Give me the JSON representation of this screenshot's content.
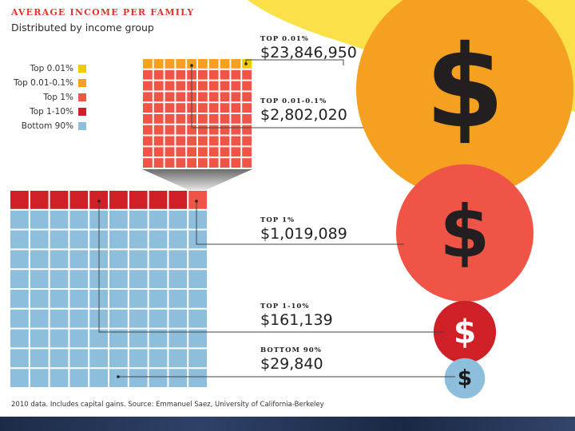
{
  "chart_data": {
    "type": "bar",
    "title": "AVERAGE INCOME PER FAMILY",
    "subtitle": "Distributed by income group",
    "categories": [
      "Top 0.01%",
      "Top 0.01-0.1%",
      "Top 1%",
      "Top 1-10%",
      "Bottom 90%"
    ],
    "values": [
      23846950,
      2802020,
      1019089,
      161139,
      29840
    ],
    "series": [
      {
        "name": "Top 0.01%",
        "label": "TOP 0.01%",
        "value": 23846950,
        "display": "$23,846,950",
        "color": "#f5c800"
      },
      {
        "name": "Top 0.01-0.1%",
        "label": "TOP 0.01-0.1%",
        "value": 2802020,
        "display": "$2,802,020",
        "color": "#f5a020"
      },
      {
        "name": "Top 1%",
        "label": "TOP 1%",
        "value": 1019089,
        "display": "$1,019,089",
        "color": "#ef5446"
      },
      {
        "name": "Top 1-10%",
        "label": "TOP 1-10%",
        "value": 161139,
        "display": "$161,139",
        "color": "#cf2027"
      },
      {
        "name": "Bottom 90%",
        "label": "BOTTOM 90%",
        "value": 29840,
        "display": "$29,840",
        "color": "#8dbfdd"
      }
    ],
    "legend": [
      {
        "label": "Top 0.01%",
        "color": "#f5c800"
      },
      {
        "label": "Top 0.01-0.1%",
        "color": "#f5a020"
      },
      {
        "label": "Top 1%",
        "color": "#ef5446"
      },
      {
        "label": "Top 1-10%",
        "color": "#cf2027"
      },
      {
        "label": "Bottom 90%",
        "color": "#8dbfdd"
      }
    ],
    "small_grid": {
      "rows": 10,
      "cols": 10,
      "top_row": [
        9,
        1
      ]
    },
    "big_grid": {
      "rows": 10,
      "cols": 10,
      "top_row": [
        9,
        1
      ]
    },
    "dollar_symbol": "$",
    "source": "2010 data. Includes capital gains. Source: Emmanuel Saez, University of California-Berkeley"
  },
  "colors": {
    "background": "#ffffff",
    "sun": "#fbe04a",
    "grid_line": "#ffffff",
    "leader_line": "#444444",
    "dollar": "#231f20",
    "dollar_small": "#ffffff",
    "dollar_dark": "#1a1a1a"
  }
}
